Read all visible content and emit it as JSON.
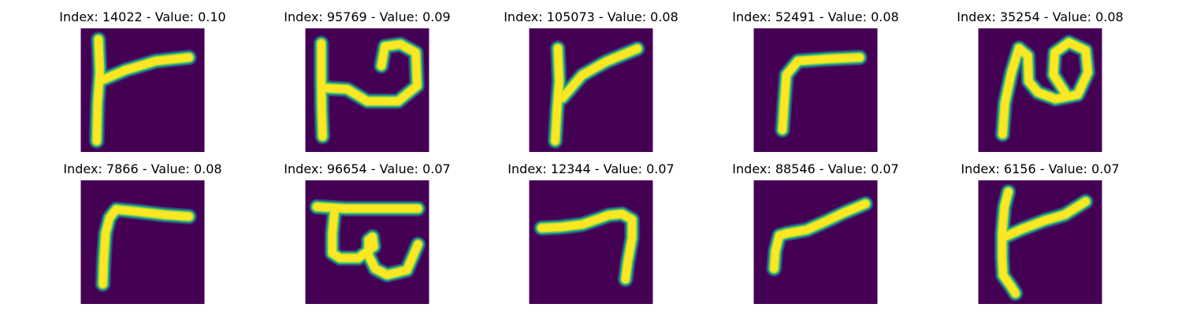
{
  "colors": {
    "background": "#440154",
    "stroke_core": "#fde725",
    "stroke_edge_1": "#b5de2b",
    "stroke_edge_2": "#35b779",
    "stroke_edge_3": "#26828e",
    "stroke_edge_4": "#31688e"
  },
  "panels": [
    {
      "title": "Index: 14022 - Value: 0.10"
    },
    {
      "title": "Index: 95769 - Value: 0.09"
    },
    {
      "title": "Index: 105073 - Value: 0.08"
    },
    {
      "title": "Index: 52491 - Value: 0.08"
    },
    {
      "title": "Index: 35254 - Value: 0.08"
    },
    {
      "title": "Index: 7866 - Value: 0.08"
    },
    {
      "title": "Index: 96654 - Value: 0.07"
    },
    {
      "title": "Index: 12344 - Value: 0.07"
    },
    {
      "title": "Index: 88546 - Value: 0.07"
    },
    {
      "title": "Index: 6156 - Value: 0.07"
    }
  ]
}
